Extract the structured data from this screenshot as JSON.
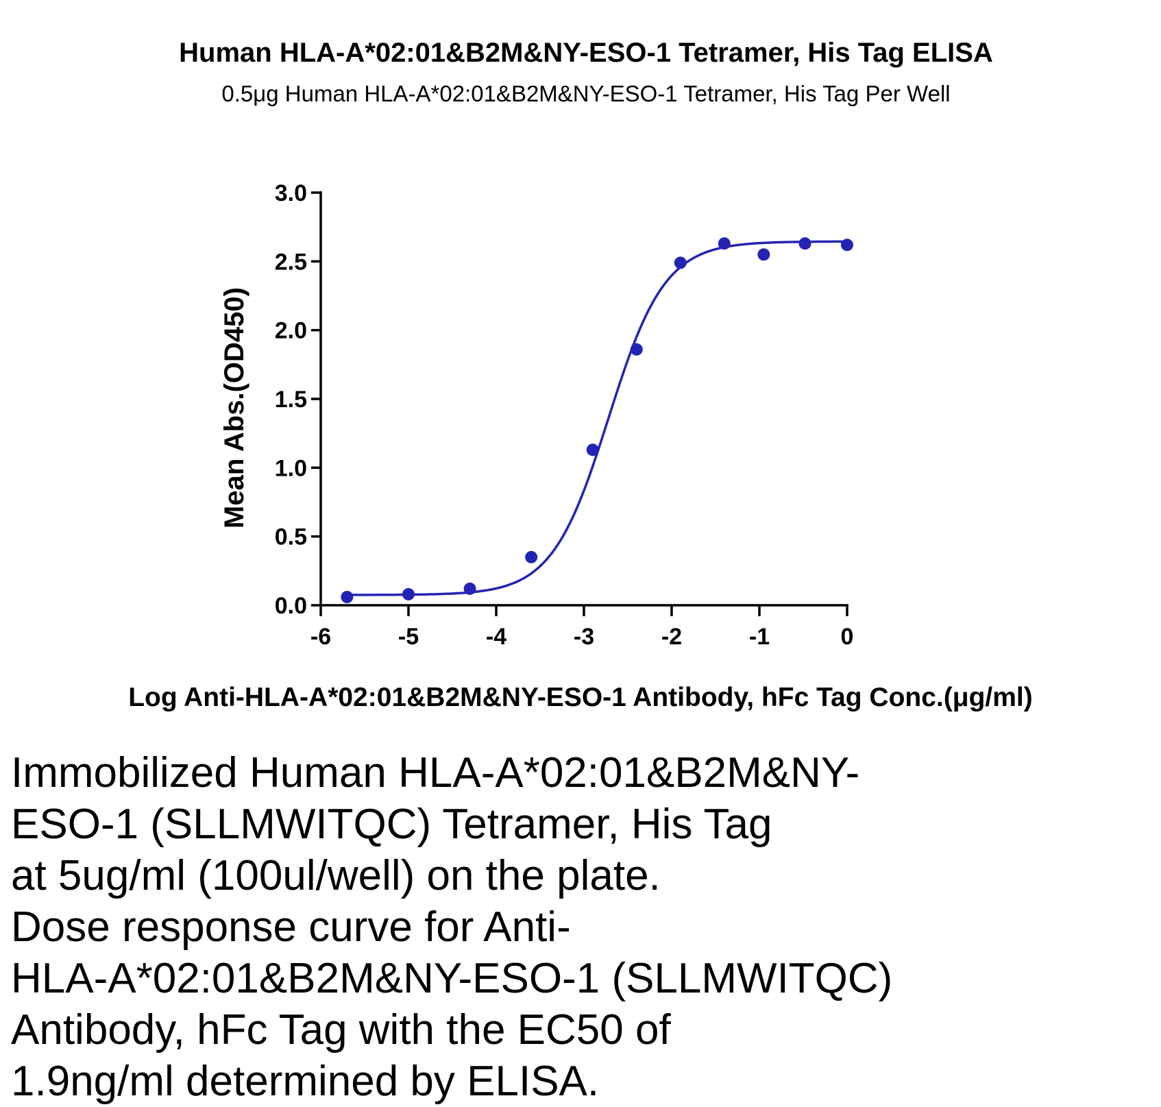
{
  "header": {
    "title": "Human HLA-A*02:01&B2M&NY-ESO-1 Tetramer, His Tag ELISA",
    "subtitle": "0.5μg Human HLA-A*02:01&B2M&NY-ESO-1 Tetramer, His Tag Per Well"
  },
  "chart_data": {
    "type": "scatter",
    "title": "Human HLA-A*02:01&B2M&NY-ESO-1 Tetramer, His Tag ELISA",
    "subtitle": "0.5μg Human HLA-A*02:01&B2M&NY-ESO-1 Tetramer, His Tag Per Well",
    "xlabel": "Log Anti-HLA-A*02:01&B2M&NY-ESO-1 Antibody, hFc Tag Conc.(μg/ml)",
    "ylabel": "Mean Abs.(OD450)",
    "xlim": [
      -6,
      0
    ],
    "ylim": [
      0,
      3.0
    ],
    "x_ticks": [
      "-6",
      "-5",
      "-4",
      "-3",
      "-2",
      "-1",
      "0"
    ],
    "y_ticks": [
      "0.0",
      "0.5",
      "1.0",
      "1.5",
      "2.0",
      "2.5",
      "3.0"
    ],
    "grid": false,
    "series": [
      {
        "color": "#2323b4",
        "points": [
          {
            "x": -5.7,
            "y": 0.06
          },
          {
            "x": -5.0,
            "y": 0.08
          },
          {
            "x": -4.3,
            "y": 0.12
          },
          {
            "x": -3.6,
            "y": 0.35
          },
          {
            "x": -2.9,
            "y": 1.13
          },
          {
            "x": -2.4,
            "y": 1.86
          },
          {
            "x": -1.9,
            "y": 2.49
          },
          {
            "x": -1.4,
            "y": 2.63
          },
          {
            "x": -0.95,
            "y": 2.55
          },
          {
            "x": -0.48,
            "y": 2.63
          },
          {
            "x": 0.0,
            "y": 2.62
          }
        ],
        "fit_curve": {
          "model": "four-parameter logistic",
          "bottom": 0.075,
          "top": 2.645,
          "log_ec50": -2.72,
          "hill_slope": 1.35,
          "x_range": [
            -5.7,
            0.0
          ]
        }
      }
    ]
  },
  "caption": {
    "lines": [
      "Immobilized Human HLA-A*02:01&B2M&NY-",
      "ESO-1 (SLLMWITQC) Tetramer, His Tag",
      "at 5ug/ml (100ul/well) on the plate.",
      "Dose response curve for Anti-",
      "HLA-A*02:01&B2M&NY-ESO-1 (SLLMWITQC)",
      "Antibody, hFc Tag with the EC50 of",
      "1.9ng/ml determined by ELISA."
    ]
  }
}
